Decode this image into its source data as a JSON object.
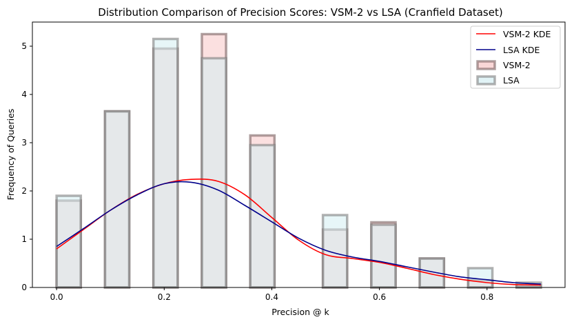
{
  "chart_data": {
    "type": "bar",
    "title": "Distribution Comparison of Precision Scores: VSM-2 vs LSA (Cranfield Dataset)",
    "xlabel": "Precision @ k",
    "ylabel": "Frequency of Queries",
    "xlim": [
      -0.045,
      0.945
    ],
    "ylim": [
      0,
      5.5
    ],
    "xticks": [
      0.0,
      0.2,
      0.4,
      0.6,
      0.8
    ],
    "xtick_labels": [
      "0.0",
      "0.2",
      "0.4",
      "0.6",
      "0.8"
    ],
    "yticks": [
      0,
      1,
      2,
      3,
      4,
      5
    ],
    "ytick_labels": [
      "0",
      "1",
      "2",
      "3",
      "4",
      "5"
    ],
    "bin_edges": [
      0.0,
      0.045,
      0.09,
      0.135,
      0.18,
      0.225,
      0.27,
      0.315,
      0.36,
      0.405,
      0.45,
      0.495,
      0.54,
      0.585,
      0.63,
      0.675,
      0.72,
      0.765,
      0.81,
      0.855,
      0.9
    ],
    "grid": false,
    "legend_position": "top-right",
    "histograms": [
      {
        "name": "VSM-2",
        "fill_color": "#f7c6c6",
        "edge_color": "#7a6060",
        "counts": [
          1.8,
          0,
          3.65,
          0,
          4.95,
          0,
          5.25,
          0,
          3.15,
          0,
          0,
          1.2,
          0,
          1.35,
          0,
          0.6,
          0,
          0.15,
          0,
          0.05
        ]
      },
      {
        "name": "LSA",
        "fill_color": "#d4eef2",
        "edge_color": "#7f7f7f",
        "counts": [
          1.9,
          0,
          3.65,
          0,
          5.15,
          0,
          4.75,
          0,
          2.95,
          0,
          0,
          1.5,
          0,
          1.3,
          0,
          0.6,
          0,
          0.4,
          0,
          0.1
        ]
      }
    ],
    "series": [
      {
        "name": "VSM-2 KDE",
        "color": "#ff0000",
        "x": [
          0.0,
          0.05,
          0.1,
          0.15,
          0.2,
          0.25,
          0.3,
          0.35,
          0.4,
          0.45,
          0.5,
          0.55,
          0.6,
          0.65,
          0.7,
          0.75,
          0.8,
          0.85,
          0.9
        ],
        "values": [
          0.8,
          1.2,
          1.6,
          1.93,
          2.15,
          2.24,
          2.2,
          1.92,
          1.45,
          0.98,
          0.68,
          0.6,
          0.52,
          0.4,
          0.27,
          0.17,
          0.1,
          0.06,
          0.05
        ]
      },
      {
        "name": "LSA KDE",
        "color": "#00008b",
        "x": [
          0.0,
          0.05,
          0.1,
          0.15,
          0.2,
          0.25,
          0.3,
          0.35,
          0.4,
          0.45,
          0.5,
          0.55,
          0.6,
          0.65,
          0.7,
          0.75,
          0.8,
          0.85,
          0.9
        ],
        "values": [
          0.85,
          1.22,
          1.6,
          1.92,
          2.15,
          2.18,
          2.02,
          1.7,
          1.36,
          1.02,
          0.77,
          0.63,
          0.54,
          0.43,
          0.32,
          0.22,
          0.16,
          0.1,
          0.07
        ]
      }
    ],
    "legend": [
      "VSM-2 KDE",
      "LSA KDE",
      "VSM-2",
      "LSA"
    ]
  }
}
